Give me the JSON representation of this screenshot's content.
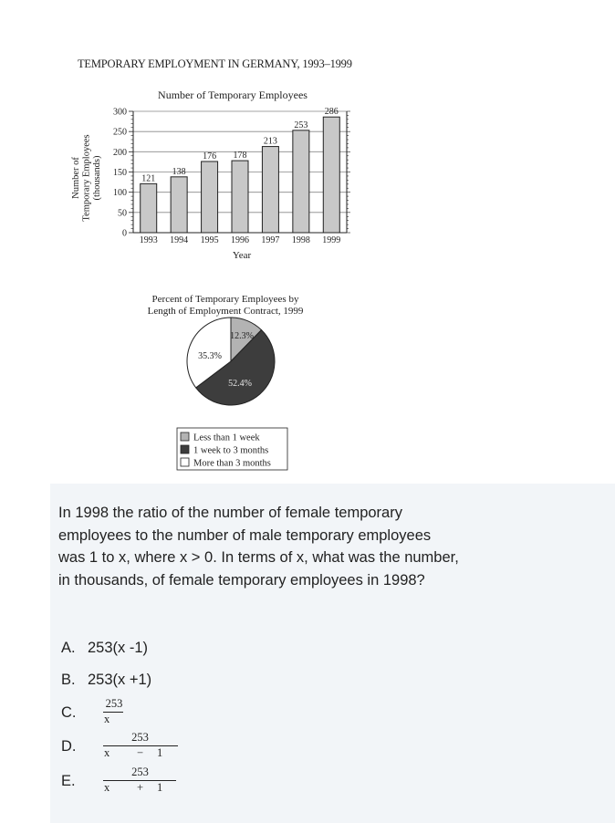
{
  "figure": {
    "title": "TEMPORARY EMPLOYMENT IN GERMANY, 1993–1999"
  },
  "chart_data": [
    {
      "type": "bar",
      "title": "Number of Temporary Employees",
      "xlabel": "Year",
      "ylabel": "Number of Temporary Employees (thousands)",
      "ylabel_lines": [
        "Number of",
        "Temporary Employees",
        "(thousands)"
      ],
      "categories": [
        "1993",
        "1994",
        "1995",
        "1996",
        "1997",
        "1998",
        "1999"
      ],
      "values": [
        121,
        138,
        176,
        178,
        213,
        253,
        286
      ],
      "ylim": [
        0,
        300
      ],
      "yticks": [
        0,
        50,
        100,
        150,
        200,
        250,
        300
      ],
      "grid": true,
      "bar_color": "#c8c8c8"
    },
    {
      "type": "pie",
      "title": "Percent of Temporary Employees by Length of Employment Contract, 1999",
      "title_lines": [
        "Percent of Temporary Employees by",
        "Length of Employment Contract, 1999"
      ],
      "slices": [
        {
          "label": "Less than 1 week",
          "value": 12.3,
          "display": "12.3%",
          "color": "#b3b3b3"
        },
        {
          "label": "1 week to 3 months",
          "value": 52.4,
          "display": "52.4%",
          "color": "#3d3d3d"
        },
        {
          "label": "More than 3 months",
          "value": 35.3,
          "display": "35.3%",
          "color": "#ffffff"
        }
      ],
      "legend_position": "bottom"
    }
  ],
  "question": {
    "text": "In 1998 the ratio of the number of female temporary employees to the number of male temporary employees was 1 to x, where x > 0. In terms of x, what was the number, in thousands, of female temporary employees in 1998?",
    "choices": [
      {
        "letter": "A.",
        "text": "253(x -1)"
      },
      {
        "letter": "B.",
        "text": "253(x +1)"
      },
      {
        "letter": "C.",
        "numerator": "253",
        "denominator": "x"
      },
      {
        "letter": "D.",
        "numerator": "253",
        "den_x": "x",
        "den_op": "−",
        "den_n": "1"
      },
      {
        "letter": "E.",
        "numerator": "253",
        "den_x": "x",
        "den_op": "+",
        "den_n": "1"
      }
    ]
  }
}
